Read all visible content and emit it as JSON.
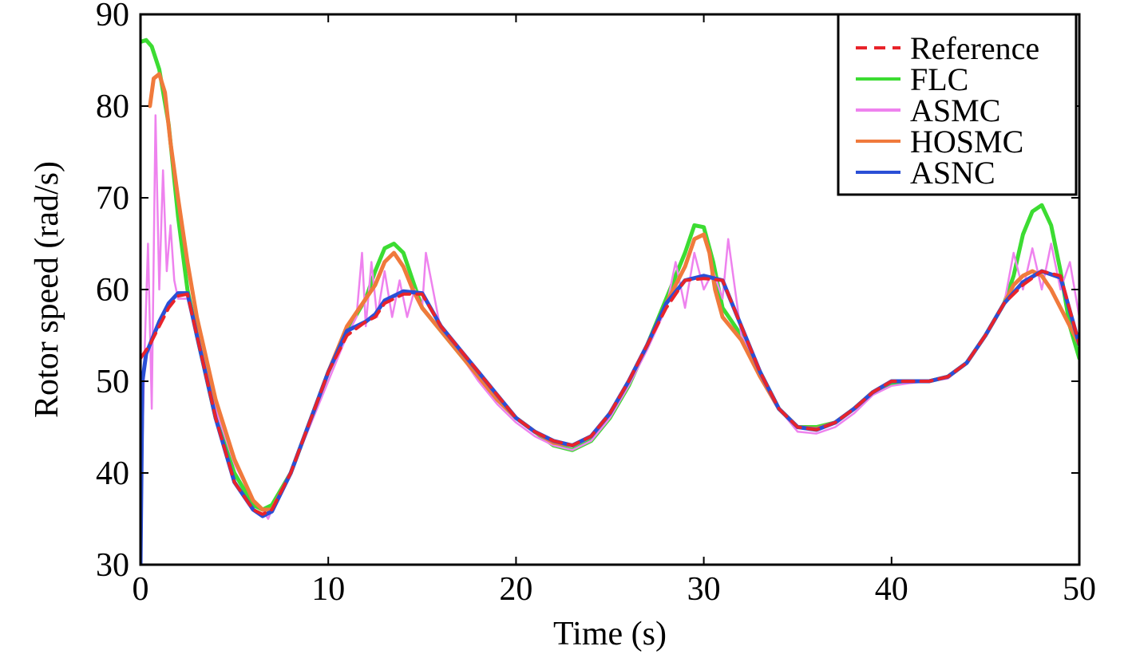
{
  "chart_data": {
    "type": "line",
    "title": "",
    "xlabel": "Time (s)",
    "ylabel": "Rotor speed (rad/s)",
    "xlim": [
      0,
      50
    ],
    "ylim": [
      30,
      90
    ],
    "xticks": [
      0,
      10,
      20,
      30,
      40,
      50
    ],
    "yticks": [
      30,
      40,
      50,
      60,
      70,
      80,
      90
    ],
    "grid": false,
    "legend_position": "top-right",
    "series": [
      {
        "name": "Reference",
        "color": "#e8232a",
        "style": "dashed",
        "x": [
          0,
          0.5,
          1,
          1.5,
          2,
          2.5,
          3,
          4,
          5,
          6,
          6.5,
          7,
          8,
          9,
          10,
          11,
          12,
          12.5,
          13,
          14,
          15,
          16,
          17,
          18,
          19,
          20,
          21,
          22,
          23,
          24,
          25,
          26,
          27,
          28,
          29,
          30,
          31,
          32,
          33,
          34,
          35,
          36,
          37,
          38,
          39,
          40,
          41,
          42,
          43,
          44,
          45,
          46,
          47,
          48,
          49,
          50
        ],
        "y": [
          52.5,
          54,
          56,
          58,
          59.3,
          59.5,
          55,
          46,
          39,
          36,
          35.5,
          36,
          40,
          45.5,
          51,
          55,
          56.5,
          57,
          58.5,
          59.5,
          59.5,
          56,
          53.5,
          51,
          48.5,
          46,
          44.5,
          43.5,
          43,
          44,
          46.5,
          50,
          54,
          58,
          61,
          61.2,
          61,
          56,
          51,
          47,
          45,
          44.7,
          45.5,
          47,
          48.8,
          50,
          50,
          50,
          50.5,
          52,
          55,
          58.5,
          60.5,
          62,
          61.5,
          54
        ]
      },
      {
        "name": "FLC",
        "color": "#3cdc32",
        "style": "solid",
        "x": [
          0,
          0.3,
          0.6,
          1,
          1.5,
          2,
          2.5,
          3,
          4,
          5,
          6,
          6.5,
          7,
          8,
          9,
          10,
          11,
          12,
          12.5,
          13,
          13.5,
          14,
          14.5,
          15,
          16,
          17,
          18,
          19,
          20,
          21,
          22,
          23,
          24,
          25,
          26,
          27,
          28,
          29,
          29.5,
          30,
          30.5,
          31,
          32,
          33,
          34,
          35,
          36,
          37,
          38,
          39,
          40,
          41,
          42,
          43,
          44,
          45,
          46,
          46.5,
          47,
          47.5,
          48,
          48.5,
          49,
          49.5,
          50
        ],
        "y": [
          87,
          87.2,
          86.5,
          84,
          78,
          68,
          60,
          55,
          46,
          40,
          36.5,
          36,
          36.5,
          40,
          45.5,
          51,
          55.5,
          59,
          62,
          64.5,
          65,
          64,
          61,
          58,
          55.5,
          53,
          50.5,
          48,
          46,
          44.5,
          43,
          42.5,
          43.5,
          46,
          49.5,
          54,
          59,
          64,
          67,
          66.8,
          63,
          58,
          55,
          51,
          47,
          45,
          45,
          45.5,
          47,
          48.8,
          49.8,
          50,
          50,
          50.5,
          52,
          55,
          58.5,
          61.5,
          66,
          68.5,
          69.2,
          67,
          62,
          56,
          52.5
        ]
      },
      {
        "name": "ASMC",
        "color": "#ee82ee",
        "style": "solid",
        "x": [
          0,
          0.2,
          0.4,
          0.6,
          0.8,
          1,
          1.2,
          1.4,
          1.6,
          1.8,
          2,
          2.5,
          3,
          4,
          5,
          6,
          6.5,
          6.8,
          7,
          8,
          9,
          10,
          11,
          11.5,
          11.8,
          12,
          12.3,
          12.6,
          13,
          13.4,
          13.8,
          14.2,
          14.6,
          15,
          15.2,
          16,
          17,
          18,
          19,
          20,
          21,
          22,
          23,
          24,
          25,
          26,
          27,
          28,
          28.5,
          29,
          29.5,
          30,
          30.5,
          31,
          31.3,
          32,
          33,
          34,
          35,
          36,
          37,
          38,
          39,
          40,
          41,
          42,
          43,
          44,
          45,
          46,
          46.5,
          47,
          47.5,
          48,
          48.5,
          49,
          49.5,
          50
        ],
        "y": [
          33,
          52,
          65,
          47,
          79,
          60,
          73,
          62,
          67,
          61,
          59,
          59,
          55,
          47,
          41,
          37,
          36,
          35,
          36,
          40,
          45,
          50,
          55,
          57,
          64,
          56,
          63,
          57,
          62,
          57,
          61,
          57,
          60,
          58,
          64,
          55.5,
          53,
          50,
          47.5,
          45.5,
          44,
          43,
          42.5,
          43.5,
          46,
          49.5,
          53.5,
          58,
          63,
          58,
          64,
          60,
          62,
          59,
          65.5,
          55,
          51,
          47,
          44.5,
          44.3,
          45,
          46.5,
          48.5,
          49.5,
          49.8,
          50,
          50.3,
          52,
          55,
          58.5,
          64,
          60,
          64.5,
          60,
          65,
          60,
          63,
          57
        ]
      },
      {
        "name": "HOSMC",
        "color": "#f07a3c",
        "style": "solid",
        "x": [
          0.5,
          0.7,
          1,
          1.3,
          1.6,
          2,
          2.5,
          3,
          4,
          5,
          6,
          6.5,
          7,
          8,
          9,
          10,
          11,
          12,
          12.5,
          13,
          13.5,
          14,
          14.5,
          15,
          16,
          17,
          18,
          19,
          20,
          21,
          22,
          23,
          24,
          25,
          26,
          27,
          28,
          29,
          29.5,
          30,
          30.3,
          30.6,
          31,
          32,
          33,
          34,
          35,
          36,
          37,
          38,
          39,
          40,
          41,
          42,
          43,
          44,
          45,
          46,
          46.5,
          47,
          47.5,
          48,
          48.5,
          49,
          49.5,
          50
        ],
        "y": [
          80,
          83,
          83.5,
          81.5,
          76,
          70,
          63,
          57,
          48,
          41.5,
          37,
          36,
          36,
          40,
          45.5,
          51,
          56,
          59,
          60.5,
          63,
          64,
          62.5,
          60,
          58,
          55.5,
          53,
          50.5,
          48,
          46,
          44.5,
          43.3,
          43,
          44,
          46.5,
          50,
          54,
          58.5,
          62.5,
          65.5,
          66,
          64,
          60,
          57,
          54.5,
          50.5,
          47,
          45,
          44.8,
          45.5,
          47,
          48.8,
          50,
          50,
          50,
          50.5,
          52,
          55,
          58.5,
          60.5,
          61.5,
          62,
          61.5,
          60,
          58,
          56,
          54
        ]
      },
      {
        "name": "ASNC",
        "color": "#2a4fd6",
        "style": "solid",
        "x": [
          0,
          0.1,
          0.3,
          0.6,
          1,
          1.5,
          2,
          2.5,
          3,
          4,
          5,
          6,
          6.5,
          7,
          8,
          9,
          10,
          11,
          12,
          12.5,
          13,
          14,
          15,
          16,
          17,
          18,
          19,
          20,
          21,
          22,
          23,
          24,
          25,
          26,
          27,
          28,
          29,
          30,
          31,
          32,
          33,
          34,
          35,
          36,
          37,
          38,
          39,
          40,
          41,
          42,
          43,
          44,
          45,
          46,
          47,
          48,
          49,
          50
        ],
        "y": [
          30,
          50,
          53,
          54.5,
          56.5,
          58.5,
          59.6,
          59.6,
          55,
          46,
          39,
          36,
          35.3,
          35.8,
          40,
          45.5,
          51,
          55.5,
          56.5,
          57.3,
          58.8,
          59.8,
          59.6,
          56,
          53.5,
          51,
          48.5,
          46,
          44.5,
          43.5,
          43,
          44,
          46.5,
          50,
          54,
          58.5,
          61,
          61.5,
          61,
          56,
          51,
          47,
          45,
          44.7,
          45.5,
          47,
          48.8,
          50,
          50,
          50,
          50.5,
          52,
          55,
          58.5,
          60.8,
          62,
          61.3,
          54
        ]
      }
    ]
  }
}
